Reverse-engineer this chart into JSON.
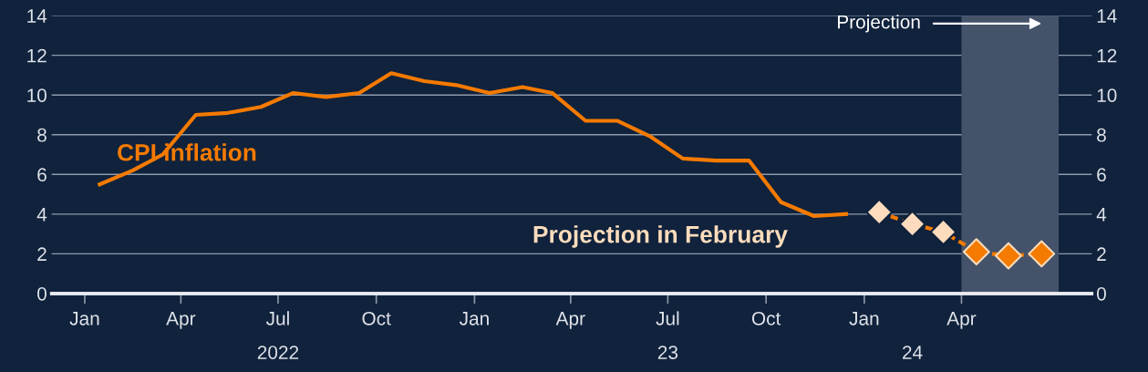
{
  "chart_data": {
    "type": "line",
    "x": [
      "2022-01-15",
      "2022-02-15",
      "2022-03-15",
      "2022-04-15",
      "2022-05-15",
      "2022-06-15",
      "2022-07-15",
      "2022-08-15",
      "2022-09-15",
      "2022-10-15",
      "2022-11-15",
      "2022-12-15",
      "2023-01-15",
      "2023-02-15",
      "2023-03-15",
      "2023-04-15",
      "2023-05-15",
      "2023-06-15",
      "2023-07-15",
      "2023-08-15",
      "2023-09-15",
      "2023-10-15",
      "2023-11-15",
      "2023-12-15"
    ],
    "series": [
      {
        "name": "CPI inflation",
        "color": "#f47a00",
        "line_style": "solid",
        "marker": "none",
        "values": [
          5.5,
          6.2,
          7.0,
          9.0,
          9.1,
          9.4,
          10.1,
          9.9,
          10.1,
          11.1,
          10.7,
          10.5,
          10.1,
          10.4,
          10.1,
          8.7,
          8.7,
          7.9,
          6.8,
          6.7,
          6.7,
          4.6,
          3.9,
          4.0
        ]
      },
      {
        "name": "Projection in February",
        "color": "#f47a00",
        "line_style": "dashed",
        "marker": "diamond",
        "x": [
          "2024-01-15",
          "2024-02-15",
          "2024-03-15",
          "2024-04-15",
          "2024-05-15",
          "2024-06-15"
        ],
        "values": [
          4.1,
          3.5,
          3.1,
          2.1,
          1.9,
          2.0
        ],
        "colors": [
          "#fcdcbc",
          "#fcdcbc",
          "#fcdcbc",
          "#f47a00",
          "#f47a00",
          "#f47a00"
        ]
      }
    ],
    "xlim": [
      "2021-12-01",
      "2024-08-01"
    ],
    "xticks": [
      {
        "value": "2022-01-01",
        "label": "Jan"
      },
      {
        "value": "2022-04-01",
        "label": "Apr"
      },
      {
        "value": "2022-07-01",
        "label": "Jul"
      },
      {
        "value": "2022-10-01",
        "label": "Oct"
      },
      {
        "value": "2023-01-01",
        "label": "Jan"
      },
      {
        "value": "2023-04-01",
        "label": "Apr"
      },
      {
        "value": "2023-07-01",
        "label": "Jul"
      },
      {
        "value": "2023-10-01",
        "label": "Oct"
      },
      {
        "value": "2024-01-01",
        "label": "Jan"
      },
      {
        "value": "2024-04-01",
        "label": "Apr"
      }
    ],
    "x2lim": [
      "2021-12-01",
      "2024-08-01"
    ],
    "x2ticks": [
      {
        "value": "2022-07-01",
        "label": "2022"
      },
      {
        "value": "2023-07-01",
        "label": "23"
      },
      {
        "value": "2024-02-15",
        "label": "24"
      }
    ],
    "ylim": [
      0,
      14
    ],
    "yticks": [
      0,
      2,
      4,
      6,
      8,
      10,
      12,
      14
    ],
    "y2lim": [
      0,
      14
    ],
    "y2ticks": [
      0,
      2,
      4,
      6,
      8,
      10,
      12,
      14
    ],
    "bands": [
      {
        "axis": "x",
        "from": "2024-04-01",
        "to": "2024-07-01",
        "label": "Projection",
        "color": "#44536a"
      }
    ],
    "grid": "y",
    "legend": false
  }
}
